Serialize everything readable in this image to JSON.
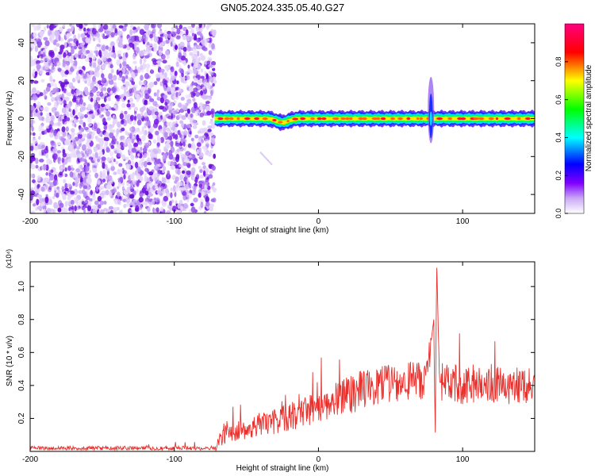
{
  "title": "GN05.2024.335.05.40.G27",
  "chart_data": [
    {
      "type": "heatmap",
      "title": "GN05.2024.335.05.40.G27",
      "xlabel": "Height of straight line (km)",
      "ylabel": "Frequency (Hz)",
      "xlim": [
        -200,
        150
      ],
      "ylim": [
        -50,
        50
      ],
      "xticks": [
        -200,
        -100,
        0,
        100
      ],
      "yticks": [
        -40,
        -20,
        0,
        20,
        40
      ],
      "colorbar": {
        "label": "Normalized spectral amplitude",
        "range": [
          0,
          1
        ],
        "ticks": [
          0.0,
          0.2,
          0.4,
          0.6,
          0.8
        ],
        "tick_labels": [
          "0.0",
          "0.2",
          "0.4",
          "0.6",
          "0.8"
        ],
        "colors": [
          "#ffffff",
          "#8000ff",
          "#0000ff",
          "#00ffff",
          "#00ff00",
          "#ffff00",
          "#ff0000",
          "#ff0080"
        ]
      },
      "noise_region_x": [
        -200,
        -72
      ],
      "signal_band": {
        "x_start": -72,
        "x_end": 150,
        "center_freq_hz": 0,
        "half_width_hz": 3,
        "features": [
          {
            "x": -25,
            "freq_offset_hz": -2
          },
          {
            "x": 78,
            "freq_range_hz": [
              -13,
              22
            ]
          }
        ]
      }
    },
    {
      "type": "line",
      "xlabel": "Height of straight line (km)",
      "ylabel": "SNR (10 * v/v)",
      "y_multiplier": "(x10⁴)",
      "xlim": [
        -200,
        150
      ],
      "ylim": [
        0,
        1.15
      ],
      "xticks": [
        -200,
        -100,
        0,
        100
      ],
      "yticks": [
        0.2,
        0.4,
        0.6,
        0.8,
        1.0
      ],
      "ytick_labels": [
        "0.2",
        "0.4",
        "0.6",
        "0.8",
        "1.0"
      ],
      "series": [
        {
          "color": "#e8302c",
          "x": [
            -200,
            -150,
            -100,
            -72,
            -65,
            -50,
            -30,
            -10,
            0,
            10,
            20,
            30,
            40,
            50,
            60,
            70,
            75,
            80,
            81,
            82,
            84,
            90,
            100,
            110,
            120,
            130,
            140,
            150
          ],
          "y": [
            0.02,
            0.02,
            0.02,
            0.02,
            0.1,
            0.14,
            0.18,
            0.24,
            0.27,
            0.31,
            0.34,
            0.37,
            0.39,
            0.41,
            0.42,
            0.43,
            0.44,
            0.8,
            0.06,
            1.15,
            0.42,
            0.41,
            0.4,
            0.41,
            0.42,
            0.4,
            0.39,
            0.39
          ]
        }
      ]
    }
  ]
}
